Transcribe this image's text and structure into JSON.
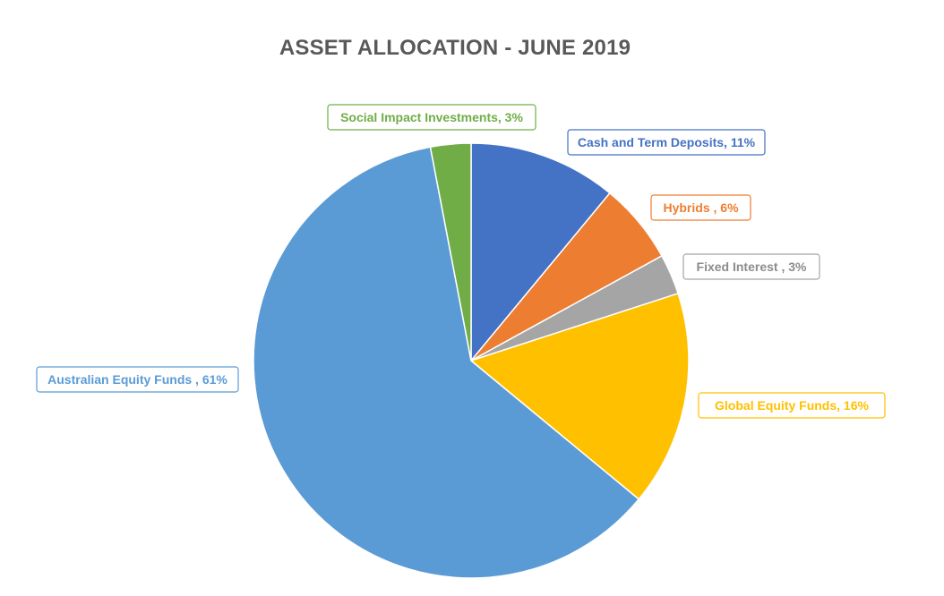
{
  "chart_data": {
    "type": "pie",
    "title": "ASSET ALLOCATION - JUNE 2019",
    "slices": [
      {
        "label": "Cash and Term Deposits",
        "value": 11,
        "display": "Cash and Term Deposits, 11%",
        "color": "#4472C4"
      },
      {
        "label": "Hybrids",
        "value": 6,
        "display": "Hybrids , 6%",
        "color": "#ED7D31"
      },
      {
        "label": "Fixed Interest",
        "value": 3,
        "display": "Fixed Interest , 3%",
        "color": "#A5A5A5"
      },
      {
        "label": "Global Equity Funds",
        "value": 16,
        "display": "Global Equity Funds, 16%",
        "color": "#FFC000"
      },
      {
        "label": "Australian Equity Funds",
        "value": 61,
        "display": "Australian Equity Funds , 61%",
        "color": "#5B9BD5"
      },
      {
        "label": "Social Impact Investments",
        "value": 3,
        "display": "Social Impact Investments, 3%",
        "color": "#70AD47"
      }
    ]
  }
}
